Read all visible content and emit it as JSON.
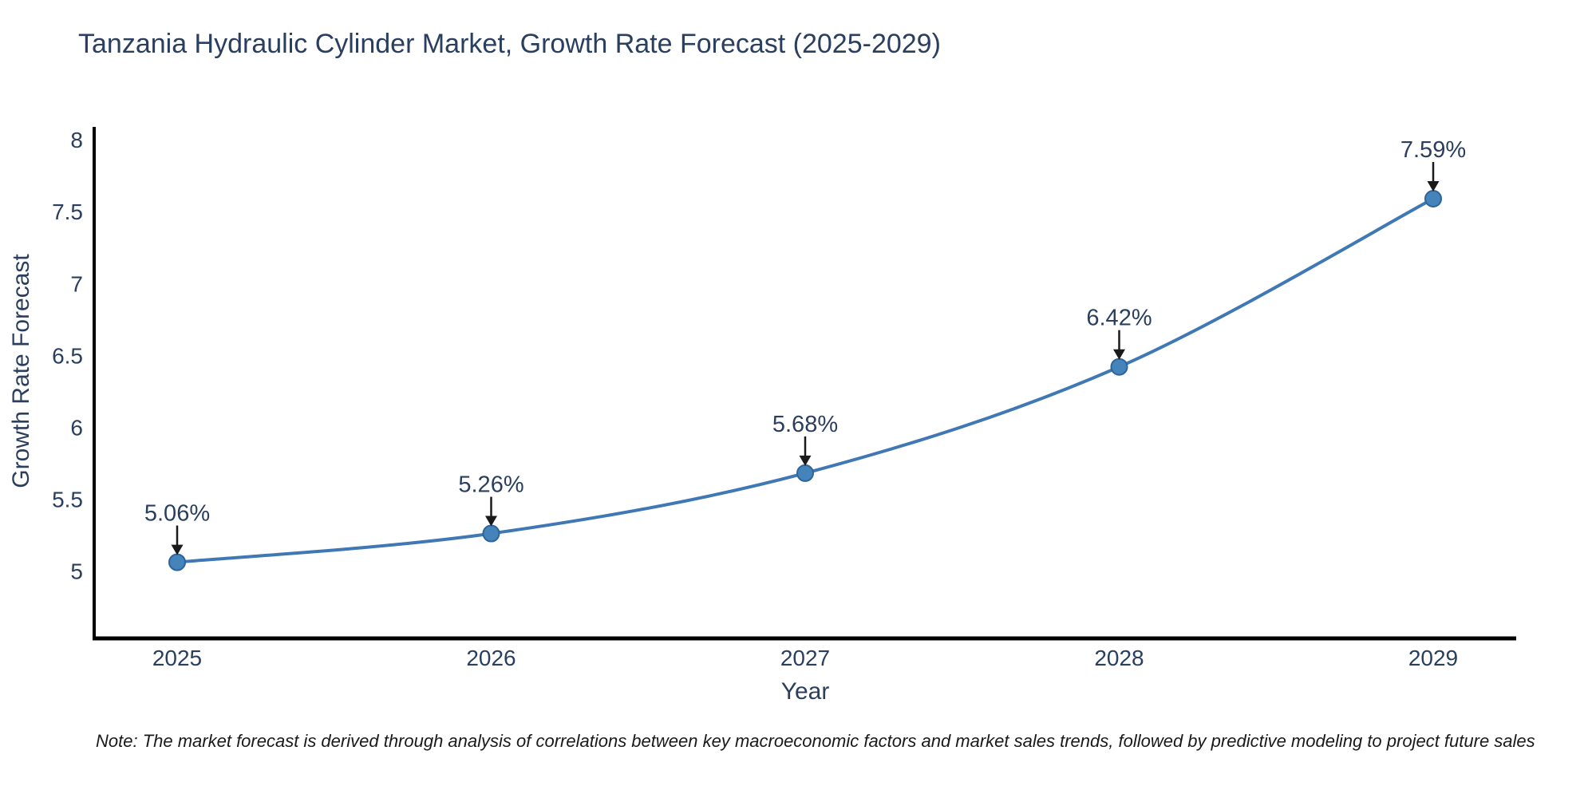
{
  "title": "Tanzania Hydraulic Cylinder Market, Growth Rate Forecast (2025-2029)",
  "note": "Note: The market forecast is derived through analysis of correlations between key macroeconomic factors and market sales trends, followed by predictive modeling to project future sales",
  "chart_data": {
    "type": "line",
    "title": "Tanzania Hydraulic Cylinder Market, Growth Rate Forecast (2025-2029)",
    "xlabel": "Year",
    "ylabel": "Growth Rate Forecast",
    "x": [
      2025,
      2026,
      2027,
      2028,
      2029
    ],
    "x_labels": [
      "2025",
      "2026",
      "2027",
      "2028",
      "2029"
    ],
    "series": [
      {
        "name": "Growth Rate Forecast",
        "values": [
          5.06,
          5.26,
          5.68,
          6.42,
          7.59
        ]
      }
    ],
    "point_labels": [
      "5.06%",
      "5.26%",
      "5.68%",
      "6.42%",
      "7.59%"
    ],
    "yticks": [
      5,
      5.5,
      6,
      6.5,
      7,
      7.5,
      8
    ],
    "ytick_labels": [
      "5",
      "5.5",
      "6",
      "6.5",
      "7",
      "7.5",
      "8"
    ],
    "ylim": [
      4.53,
      8.09
    ],
    "grid": false,
    "legend": "none",
    "line_shape": "spline",
    "colors": {
      "line": "#3f78b4",
      "marker_fill": "#4583bb",
      "marker_edge": "#2f649b",
      "axis": "#000000",
      "text": "#2a3f5f",
      "annotation_arrow": "#1a1a1a",
      "background": "#ffffff"
    }
  }
}
